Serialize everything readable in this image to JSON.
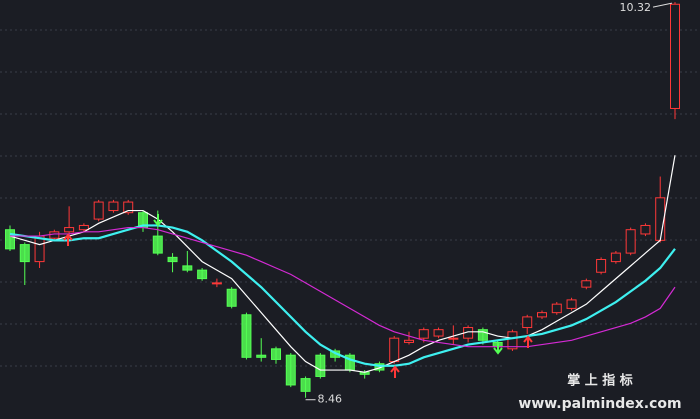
{
  "chart_data": {
    "type": "candlestick",
    "up_color": "#ff3838",
    "down_color": "#54ff54",
    "open": [
      9.25,
      9.18,
      9.1,
      9.21,
      9.24,
      9.25,
      9.3,
      9.34,
      9.33,
      9.33,
      9.22,
      9.12,
      9.08,
      9.06,
      9.0,
      8.97,
      8.85,
      8.66,
      8.69,
      8.66,
      8.55,
      8.66,
      8.68,
      8.66,
      8.58,
      8.62,
      8.63,
      8.72,
      8.74,
      8.75,
      8.74,
      8.74,
      8.78,
      8.72,
      8.69,
      8.79,
      8.84,
      8.86,
      8.88,
      8.98,
      9.05,
      9.1,
      9.14,
      9.23,
      9.2,
      9.82
    ],
    "high": [
      9.27,
      9.19,
      9.24,
      9.25,
      9.36,
      9.28,
      9.39,
      9.39,
      9.39,
      9.34,
      9.34,
      9.14,
      9.15,
      9.07,
      9.02,
      8.98,
      8.86,
      8.74,
      8.7,
      8.67,
      8.56,
      8.67,
      8.69,
      8.67,
      8.59,
      8.63,
      8.75,
      8.77,
      8.79,
      8.79,
      8.8,
      8.8,
      8.79,
      8.73,
      8.78,
      8.85,
      8.87,
      8.91,
      8.93,
      9.02,
      9.12,
      9.15,
      9.26,
      9.28,
      9.5,
      10.32
    ],
    "low": [
      9.15,
      8.99,
      9.07,
      9.2,
      9.22,
      9.24,
      9.29,
      9.33,
      9.32,
      9.24,
      9.13,
      9.05,
      9.05,
      9.01,
      8.98,
      8.88,
      8.64,
      8.63,
      8.62,
      8.51,
      8.46,
      8.55,
      8.63,
      8.58,
      8.55,
      8.58,
      8.62,
      8.71,
      8.72,
      8.74,
      8.71,
      8.72,
      8.71,
      8.67,
      8.68,
      8.76,
      8.83,
      8.85,
      8.87,
      8.97,
      9.04,
      9.09,
      9.13,
      9.22,
      9.19,
      9.77
    ],
    "close": [
      9.16,
      9.1,
      9.22,
      9.24,
      9.26,
      9.27,
      9.38,
      9.38,
      9.38,
      9.26,
      9.14,
      9.1,
      9.06,
      9.02,
      9.0,
      8.89,
      8.65,
      8.65,
      8.64,
      8.52,
      8.49,
      8.56,
      8.65,
      8.59,
      8.57,
      8.59,
      8.74,
      8.73,
      8.78,
      8.78,
      8.74,
      8.79,
      8.73,
      8.7,
      8.77,
      8.84,
      8.86,
      8.9,
      8.92,
      9.01,
      9.11,
      9.14,
      9.25,
      9.27,
      9.4,
      10.31
    ],
    "lines": [
      {
        "color": "#ffffff",
        "values": [
          9.22,
          9.2,
          9.18,
          9.2,
          9.22,
          9.24,
          9.28,
          9.31,
          9.34,
          9.34,
          9.3,
          9.24,
          9.17,
          9.1,
          9.06,
          9.02,
          8.94,
          8.86,
          8.78,
          8.7,
          8.63,
          8.59,
          8.59,
          8.59,
          8.58,
          8.6,
          8.63,
          8.66,
          8.7,
          8.73,
          8.75,
          8.77,
          8.77,
          8.75,
          8.74,
          8.75,
          8.78,
          8.82,
          8.86,
          8.9,
          8.96,
          9.02,
          9.08,
          9.14,
          9.2,
          9.6
        ]
      },
      {
        "color": "#3ef0f0",
        "values": [
          9.23,
          9.22,
          9.21,
          9.2,
          9.2,
          9.21,
          9.21,
          9.23,
          9.25,
          9.27,
          9.27,
          9.26,
          9.24,
          9.2,
          9.15,
          9.1,
          9.04,
          8.98,
          8.91,
          8.84,
          8.77,
          8.71,
          8.67,
          8.64,
          8.62,
          8.61,
          8.61,
          8.62,
          8.65,
          8.67,
          8.69,
          8.71,
          8.72,
          8.73,
          8.74,
          8.75,
          8.76,
          8.78,
          8.8,
          8.83,
          8.87,
          8.91,
          8.96,
          9.01,
          9.07,
          9.16
        ]
      },
      {
        "color": "#d42ad4",
        "values": [
          9.22,
          9.22,
          9.22,
          9.23,
          9.23,
          9.24,
          9.24,
          9.25,
          9.26,
          9.26,
          9.25,
          9.23,
          9.21,
          9.19,
          9.17,
          9.15,
          9.13,
          9.1,
          9.07,
          9.04,
          9.0,
          8.96,
          8.92,
          8.88,
          8.84,
          8.8,
          8.77,
          8.75,
          8.73,
          8.72,
          8.71,
          8.7,
          8.7,
          8.7,
          8.7,
          8.7,
          8.71,
          8.72,
          8.73,
          8.75,
          8.77,
          8.79,
          8.81,
          8.84,
          8.88,
          8.98
        ]
      }
    ],
    "ylim": [
      8.36,
      10.33
    ]
  },
  "watermark": {
    "title": "掌 上 指 标",
    "url": "www.palmindex.com"
  }
}
